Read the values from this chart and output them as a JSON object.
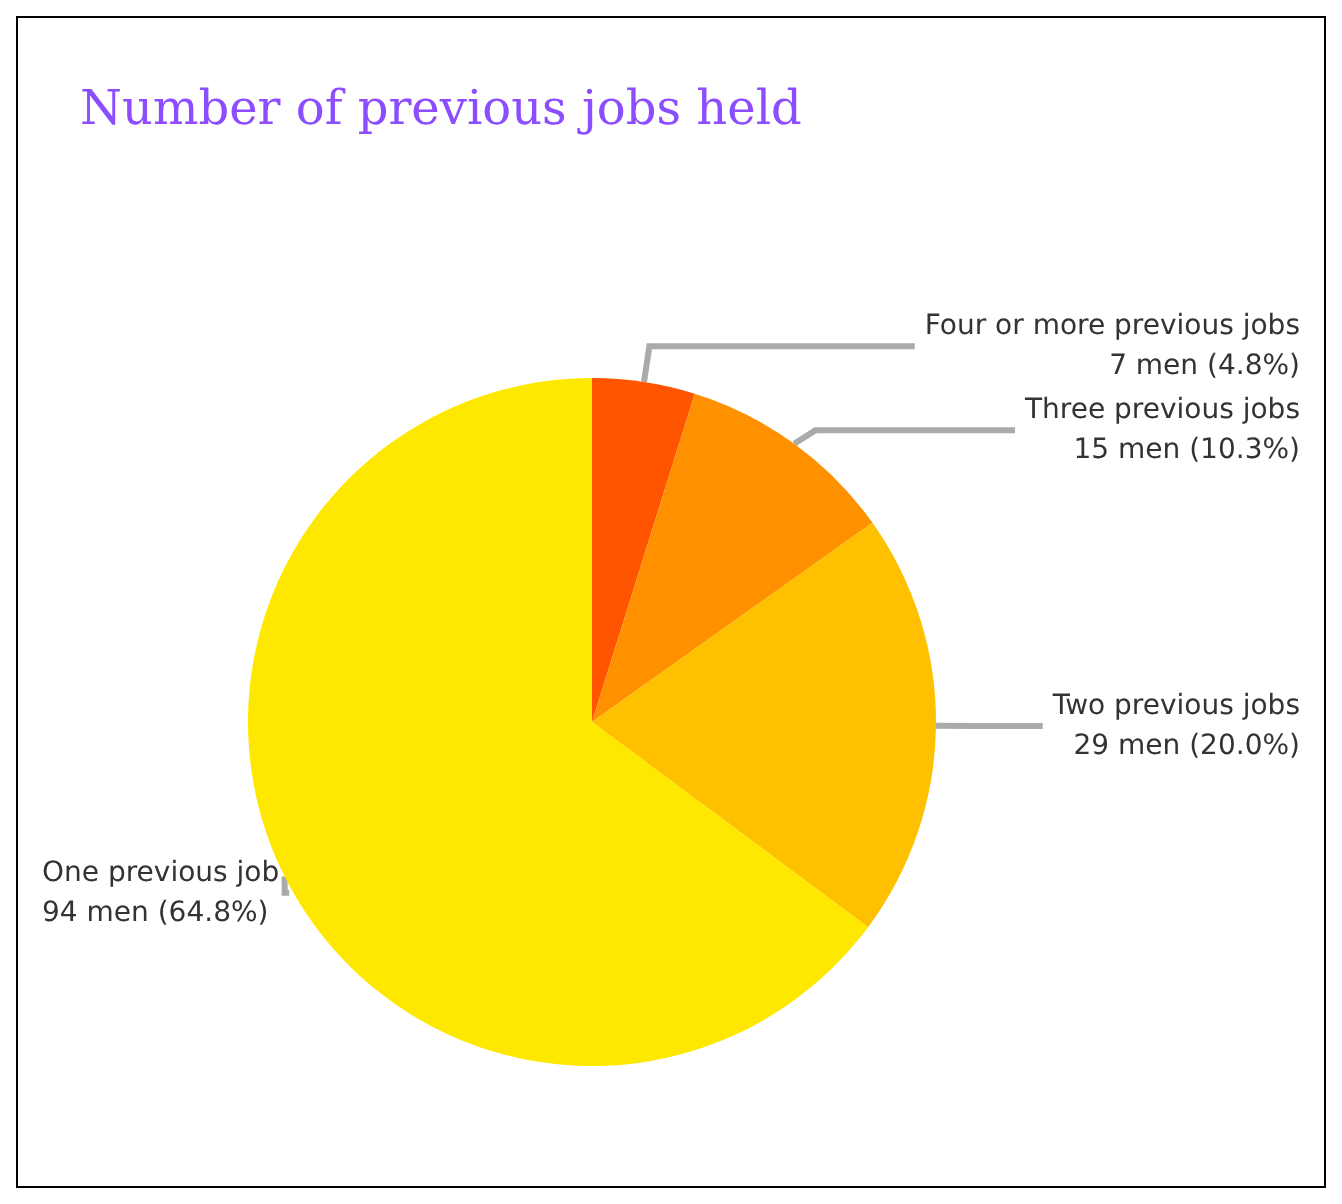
{
  "chart_data": {
    "type": "pie",
    "title": "Number of previous jobs held",
    "categories": [
      "Four or more previous jobs",
      "Three previous jobs",
      "Two previous jobs",
      "One previous job"
    ],
    "values": [
      7,
      15,
      29,
      94
    ],
    "value_labels": [
      "7 men (4.8%)",
      "15 men (10.3%)",
      "29 men (20.0%)",
      "94 men (64.8%)"
    ],
    "colors": [
      "#ff5500",
      "#ff9100",
      "#ffc000",
      "#ffe800"
    ],
    "legend": false
  }
}
